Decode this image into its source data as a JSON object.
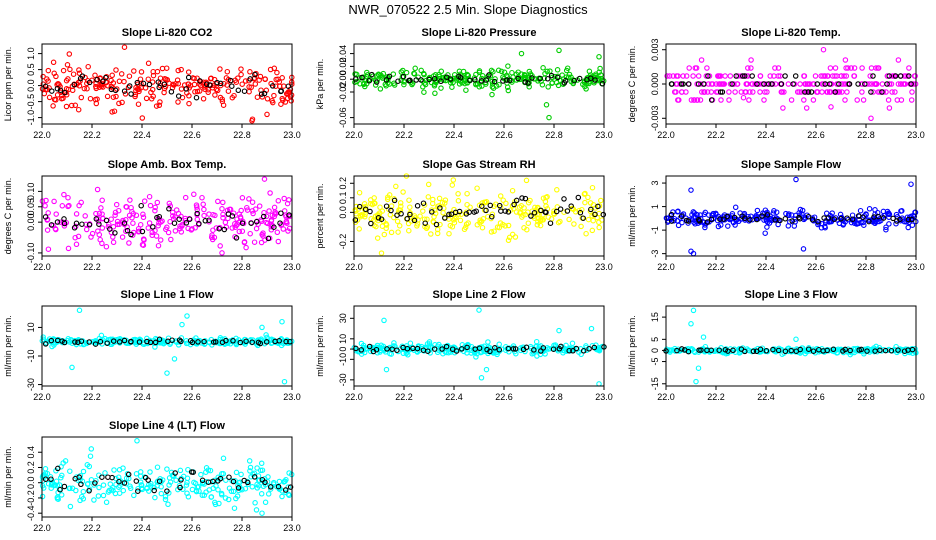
{
  "figure_title": "NWR_070522  2.5 Min. Slope Diagnostics",
  "chart_data": [
    {
      "type": "scatter",
      "title": "Slope Li-820 CO2",
      "ylabel": "Licor ppm per min.",
      "color": "#ff0000",
      "xlim": [
        22.0,
        23.0
      ],
      "ylim": [
        -1.2,
        1.3
      ],
      "xticks": [
        "22.0",
        "22.2",
        "22.4",
        "22.6",
        "22.8",
        "23.0"
      ],
      "yticks": [
        {
          "v": -1.0,
          "label": "-1.0"
        },
        {
          "v": -0.5,
          "label": "-0.5"
        },
        {
          "v": 0.0,
          "label": "0.0"
        },
        {
          "v": 0.5,
          "label": "0.5"
        },
        {
          "v": 1.0,
          "label": "1.0"
        }
      ],
      "spread": 0.3,
      "n_series": 260,
      "n_black": 45,
      "outliers": [
        [
          22.33,
          1.2
        ],
        [
          22.84,
          -1.1
        ],
        [
          22.29,
          -0.8
        ],
        [
          22.9,
          -0.9
        ]
      ]
    },
    {
      "type": "scatter",
      "title": "Slope Li-820 Pressure",
      "ylabel": "kPa per min.",
      "color": "#00cc00",
      "xlim": [
        22.0,
        23.0
      ],
      "ylim": [
        -0.07,
        0.055
      ],
      "xticks": [
        "22.0",
        "22.2",
        "22.4",
        "22.6",
        "22.8",
        "23.0"
      ],
      "yticks": [
        {
          "v": -0.06,
          "label": "-0.06"
        },
        {
          "v": -0.02,
          "label": "-0.02"
        },
        {
          "v": 0.0,
          "label": "0.00"
        },
        {
          "v": 0.02,
          "label": "0.02"
        },
        {
          "v": 0.04,
          "label": "0.04"
        }
      ],
      "spread": 0.008,
      "n_series": 260,
      "n_black": 45,
      "outliers": [
        [
          22.78,
          -0.06
        ],
        [
          22.77,
          -0.04
        ],
        [
          22.67,
          0.04
        ],
        [
          22.82,
          0.045
        ],
        [
          22.98,
          0.035
        ]
      ]
    },
    {
      "type": "scatter",
      "title": "Slope Li-820 Temp.",
      "ylabel": "degrees C per min.",
      "color": "#ff00ff",
      "xlim": [
        22.0,
        23.0
      ],
      "ylim": [
        -0.0035,
        0.0035
      ],
      "xticks": [
        "22.0",
        "22.2",
        "22.4",
        "22.6",
        "22.8",
        "23.0"
      ],
      "yticks": [
        {
          "v": -0.003,
          "label": "-0.003"
        },
        {
          "v": 0.0,
          "label": "0.000"
        },
        {
          "v": 0.003,
          "label": "0.003"
        }
      ],
      "spread": 0.0008,
      "quantum": 0.0007,
      "n_series": 260,
      "n_black": 45,
      "outliers": [
        [
          22.63,
          0.003
        ],
        [
          22.66,
          -0.002
        ],
        [
          22.82,
          -0.003
        ],
        [
          22.31,
          -0.0012
        ]
      ]
    },
    {
      "type": "scatter",
      "title": "Slope Amb. Box Temp.",
      "ylabel": "degrees C per min.",
      "color": "#ff00ff",
      "xlim": [
        22.0,
        23.0
      ],
      "ylim": [
        -0.11,
        0.15
      ],
      "xticks": [
        "22.0",
        "22.2",
        "22.4",
        "22.6",
        "22.8",
        "23.0"
      ],
      "yticks": [
        {
          "v": -0.1,
          "label": "-0.10"
        },
        {
          "v": 0.0,
          "label": "0.00"
        },
        {
          "v": 0.05,
          "label": "0.05"
        },
        {
          "v": 0.1,
          "label": "0.10"
        }
      ],
      "spread": 0.04,
      "n_series": 260,
      "n_black": 45,
      "outliers": [
        [
          22.89,
          0.14
        ],
        [
          22.72,
          -0.1
        ]
      ]
    },
    {
      "type": "scatter",
      "title": "Slope Gas Stream RH",
      "ylabel": "percent per min.",
      "color": "#ffff00",
      "xlim": [
        22.0,
        23.0
      ],
      "ylim": [
        -0.3,
        0.25
      ],
      "xticks": [
        "22.0",
        "22.2",
        "22.4",
        "22.6",
        "22.8",
        "23.0"
      ],
      "yticks": [
        {
          "v": -0.2,
          "label": "-0.2"
        },
        {
          "v": 0.0,
          "label": "0.0"
        },
        {
          "v": 0.1,
          "label": "0.1"
        },
        {
          "v": 0.2,
          "label": "0.2"
        }
      ],
      "spread": 0.08,
      "n_series": 260,
      "n_black": 60,
      "outliers": [
        [
          22.69,
          0.22
        ],
        [
          22.11,
          -0.28
        ]
      ]
    },
    {
      "type": "scatter",
      "title": "Slope Sample Flow",
      "ylabel": "ml/min per min.",
      "color": "#0000ff",
      "xlim": [
        22.0,
        23.0
      ],
      "ylim": [
        -3.2,
        3.6
      ],
      "xticks": [
        "22.0",
        "22.2",
        "22.4",
        "22.6",
        "22.8",
        "23.0"
      ],
      "yticks": [
        {
          "v": -3,
          "label": "-3"
        },
        {
          "v": -1,
          "label": "-1"
        },
        {
          "v": 1,
          "label": "1"
        },
        {
          "v": 3,
          "label": "3"
        }
      ],
      "spread": 0.35,
      "n_series": 260,
      "n_black": 45,
      "outliers": [
        [
          22.1,
          -2.8
        ],
        [
          22.11,
          -3.0
        ],
        [
          22.52,
          3.3
        ],
        [
          22.98,
          2.9
        ],
        [
          22.1,
          2.4
        ],
        [
          22.55,
          -2.6
        ]
      ]
    },
    {
      "type": "scatter",
      "title": "Slope Line 1 Flow",
      "ylabel": "ml/min per min.",
      "color": "#00ffff",
      "xlim": [
        22.0,
        23.0
      ],
      "ylim": [
        -31,
        25
      ],
      "xticks": [
        "22.0",
        "22.2",
        "22.4",
        "22.6",
        "22.8",
        "23.0"
      ],
      "yticks": [
        {
          "v": -30,
          "label": "-30"
        },
        {
          "v": -10,
          "label": "-10"
        },
        {
          "v": 10,
          "label": "10"
        }
      ],
      "spread": 1.2,
      "n_series": 260,
      "n_black": 45,
      "outliers": [
        [
          22.15,
          22
        ],
        [
          22.12,
          -18
        ],
        [
          22.5,
          -22
        ],
        [
          22.53,
          -12
        ],
        [
          22.56,
          12
        ],
        [
          22.58,
          18
        ],
        [
          22.97,
          -28
        ],
        [
          22.96,
          14
        ],
        [
          22.88,
          10
        ]
      ]
    },
    {
      "type": "scatter",
      "title": "Slope Line 2 Flow",
      "ylabel": "ml/min per min.",
      "color": "#00ffff",
      "xlim": [
        22.0,
        23.0
      ],
      "ylim": [
        -36,
        42
      ],
      "xticks": [
        "22.0",
        "22.2",
        "22.4",
        "22.6",
        "22.8",
        "23.0"
      ],
      "yticks": [
        {
          "v": -30,
          "label": "-30"
        },
        {
          "v": -10,
          "label": "-10"
        },
        {
          "v": 0,
          "label": "0"
        },
        {
          "v": 10,
          "label": "10"
        },
        {
          "v": 30,
          "label": "30"
        }
      ],
      "spread": 2.5,
      "n_series": 260,
      "n_black": 45,
      "outliers": [
        [
          22.12,
          28
        ],
        [
          22.13,
          -20
        ],
        [
          22.5,
          38
        ],
        [
          22.51,
          -28
        ],
        [
          22.53,
          -20
        ],
        [
          22.82,
          18
        ],
        [
          22.98,
          -34
        ],
        [
          22.95,
          20
        ]
      ]
    },
    {
      "type": "scatter",
      "title": "Slope Line 3 Flow",
      "ylabel": "ml/min per min.",
      "color": "#00ffff",
      "xlim": [
        22.0,
        23.0
      ],
      "ylim": [
        -16,
        20
      ],
      "xticks": [
        "22.0",
        "22.2",
        "22.4",
        "22.6",
        "22.8",
        "23.0"
      ],
      "yticks": [
        {
          "v": -15,
          "label": "-15"
        },
        {
          "v": -5,
          "label": "-5"
        },
        {
          "v": 0,
          "label": "0"
        },
        {
          "v": 5,
          "label": "5"
        },
        {
          "v": 15,
          "label": "15"
        }
      ],
      "spread": 0.6,
      "n_series": 260,
      "n_black": 45,
      "outliers": [
        [
          22.11,
          18
        ],
        [
          22.12,
          -14
        ],
        [
          22.1,
          12
        ],
        [
          22.13,
          -8
        ],
        [
          22.15,
          6
        ],
        [
          22.52,
          5
        ]
      ]
    },
    {
      "type": "scatter",
      "title": "Slope Line 4 (LT) Flow",
      "ylabel": "ml/min per min.",
      "color": "#00ffff",
      "xlim": [
        22.0,
        23.0
      ],
      "ylim": [
        -0.45,
        0.6
      ],
      "xticks": [
        "22.0",
        "22.2",
        "22.4",
        "22.6",
        "22.8",
        "23.0"
      ],
      "yticks": [
        {
          "v": -0.4,
          "label": "-0.4"
        },
        {
          "v": -0.2,
          "label": "-0.2"
        },
        {
          "v": 0.0,
          "label": "0.0"
        },
        {
          "v": 0.2,
          "label": "0.2"
        },
        {
          "v": 0.4,
          "label": "0.4"
        }
      ],
      "spread": 0.13,
      "n_series": 260,
      "n_black": 45,
      "outliers": [
        [
          22.38,
          0.55
        ],
        [
          22.88,
          -0.4
        ]
      ]
    }
  ]
}
